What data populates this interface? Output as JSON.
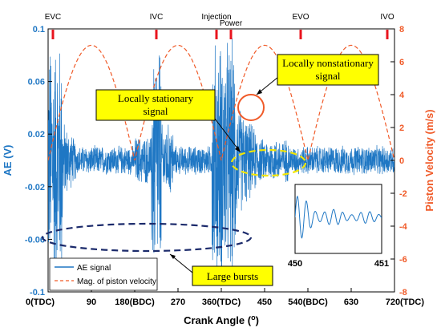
{
  "chart_data": {
    "type": "line",
    "xlabel_main": "Crank Angle (",
    "xlabel_sup": "o",
    "xlabel_end": ")",
    "ylabel_left": "AE (V)",
    "ylabel_right": "Piston Velocity (m/s)",
    "xlim": [
      0,
      720
    ],
    "ylim_left": [
      -0.1,
      0.1
    ],
    "ylim_right": [
      -8,
      8
    ],
    "x_ticks": [
      {
        "value": 0,
        "label": "0(TDC)"
      },
      {
        "value": 90,
        "label": "90"
      },
      {
        "value": 180,
        "label": "180(BDC)"
      },
      {
        "value": 270,
        "label": "270"
      },
      {
        "value": 360,
        "label": "360(TDC)"
      },
      {
        "value": 450,
        "label": "450"
      },
      {
        "value": 540,
        "label": "540(BDC)"
      },
      {
        "value": 630,
        "label": "630"
      },
      {
        "value": 720,
        "label": "720(TDC)"
      }
    ],
    "y_left_ticks": [
      {
        "value": 0.1,
        "label": "0.1"
      },
      {
        "value": 0.06,
        "label": "0.06"
      },
      {
        "value": 0.02,
        "label": "0.02"
      },
      {
        "value": -0.02,
        "label": "-0.02"
      },
      {
        "value": -0.06,
        "label": "-0.06"
      },
      {
        "value": -0.1,
        "label": "-0.1"
      }
    ],
    "y_right_ticks": [
      {
        "value": 8,
        "label": "8"
      },
      {
        "value": 6,
        "label": "6"
      },
      {
        "value": 4,
        "label": "4"
      },
      {
        "value": 2,
        "label": "2"
      },
      {
        "value": 0,
        "label": "0"
      },
      {
        "value": -2,
        "label": "-2"
      },
      {
        "value": -4,
        "label": "-4"
      },
      {
        "value": -6,
        "label": "-6"
      },
      {
        "value": -8,
        "label": "-8"
      }
    ],
    "events": [
      {
        "angle": 10,
        "label": "EVC"
      },
      {
        "angle": 225,
        "label": "IVC"
      },
      {
        "angle": 350,
        "label": "Injection"
      },
      {
        "angle": 380,
        "label": "Power"
      },
      {
        "angle": 525,
        "label": "EVO"
      },
      {
        "angle": 705,
        "label": "IVO"
      }
    ],
    "event_color": "#e8141e",
    "series": [
      {
        "name": "AE signal",
        "color": "#1f77c4",
        "bursts": [
          {
            "x0": 0,
            "x1": 30,
            "amp": 0.1
          },
          {
            "x0": 215,
            "x1": 235,
            "amp": 0.1
          },
          {
            "x0": 340,
            "x1": 390,
            "amp": 0.1
          }
        ],
        "baseline_amp": 0.012
      },
      {
        "name": "Mag. of piston velocity",
        "color": "#f05a28",
        "peak": 7,
        "period_deg": 180
      }
    ],
    "callouts": [
      {
        "id": "nonstationary",
        "text": "Locally nonstationary signal"
      },
      {
        "id": "stationary",
        "text": "Locally stationary signal"
      },
      {
        "id": "bursts",
        "text": "Large bursts"
      }
    ],
    "inset": {
      "x_ticks": [
        {
          "value": 450,
          "label": "450"
        },
        {
          "value": 451,
          "label": "451"
        }
      ]
    },
    "legend_position": "bottom-left",
    "grid": false
  }
}
